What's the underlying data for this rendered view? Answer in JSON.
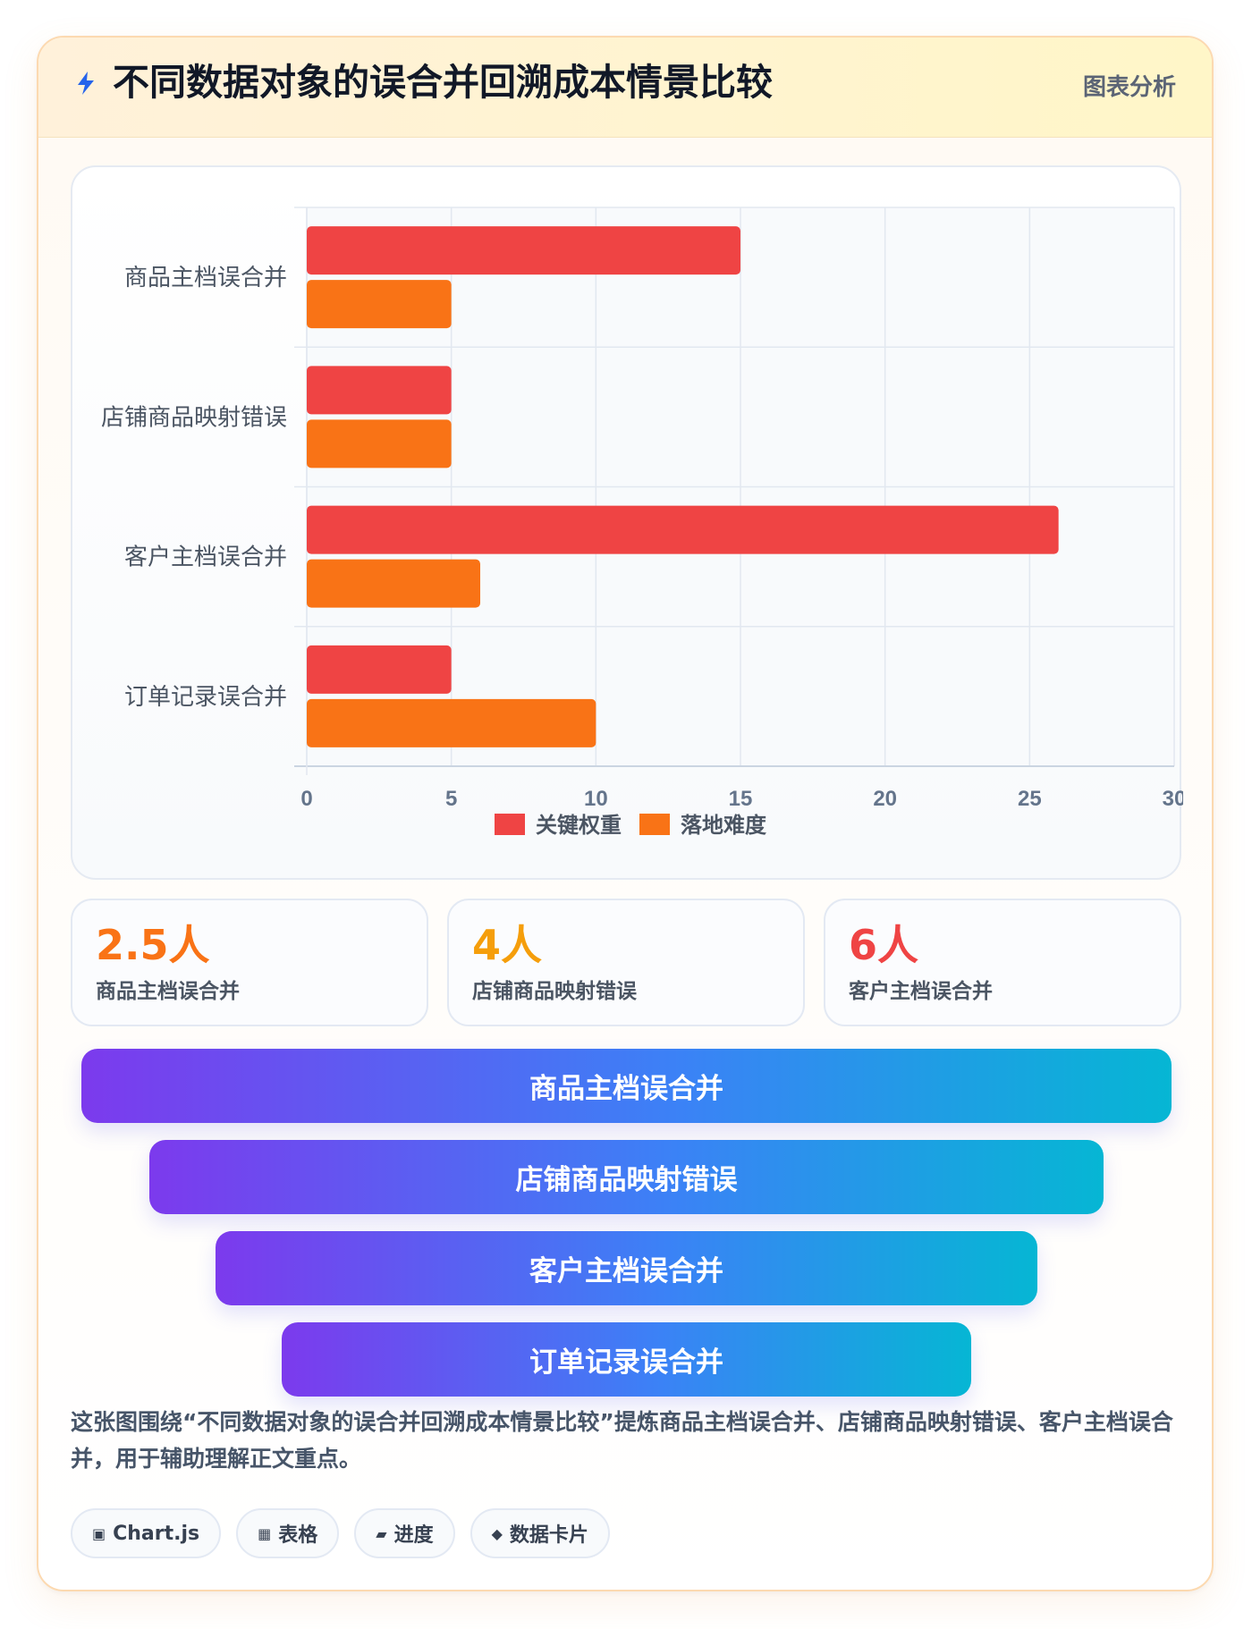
{
  "header": {
    "title": "不同数据对象的误合并回溯成本情景比较",
    "tag": "图表分析"
  },
  "chart_data": {
    "type": "bar",
    "orientation": "horizontal",
    "categories": [
      "商品主档误合并",
      "店铺商品映射错误",
      "客户主档误合并",
      "订单记录误合并"
    ],
    "series": [
      {
        "name": "关键权重",
        "values": [
          15,
          5,
          26,
          5
        ],
        "color": "#ef4444"
      },
      {
        "name": "落地难度",
        "values": [
          5,
          5,
          6,
          10
        ],
        "color": "#f97316"
      }
    ],
    "xlim": [
      0,
      30
    ],
    "xticks": [
      0,
      5,
      10,
      15,
      20,
      25,
      30
    ],
    "grid": true,
    "legend": "bottom"
  },
  "stats": [
    {
      "value": "2.5人",
      "label": "商品主档误合并",
      "color": "#f97316"
    },
    {
      "value": "4人",
      "label": "店铺商品映射错误",
      "color": "#f59e0b"
    },
    {
      "value": "6人",
      "label": "客户主档误合并",
      "color": "#ef4444"
    }
  ],
  "funnel": [
    "商品主档误合并",
    "店铺商品映射错误",
    "客户主档误合并",
    "订单记录误合并"
  ],
  "description": "这张图围绕“不同数据对象的误合并回溯成本情景比较”提炼商品主档误合并、店铺商品映射错误、客户主档误合并，用于辅助理解正文重点。",
  "tags": [
    {
      "icon": "▣",
      "label": "Chart.js"
    },
    {
      "icon": "▦",
      "label": "表格"
    },
    {
      "icon": "▰",
      "label": "进度"
    },
    {
      "icon": "◆",
      "label": "数据卡片"
    }
  ]
}
